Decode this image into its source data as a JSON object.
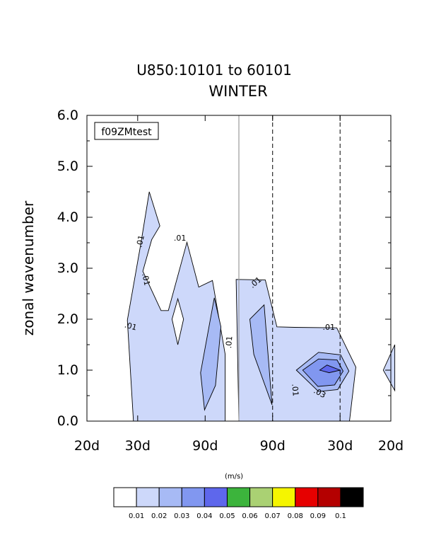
{
  "chart_data": {
    "type": "contour",
    "title": "U850:10101 to 60101",
    "subtitle": "WINTER",
    "ylabel": "zonal wavenumber",
    "ylim": [
      0.0,
      6.0
    ],
    "yticks": [
      {
        "value": 0.0,
        "label": "0.0"
      },
      {
        "value": 1.0,
        "label": "1.0"
      },
      {
        "value": 2.0,
        "label": "2.0"
      },
      {
        "value": 3.0,
        "label": "3.0"
      },
      {
        "value": 4.0,
        "label": "4.0"
      },
      {
        "value": 5.0,
        "label": "5.0"
      },
      {
        "value": 6.0,
        "label": "6.0"
      }
    ],
    "xticks": [
      {
        "value": -0.05,
        "label": "20d"
      },
      {
        "value": -0.0333,
        "label": "30d"
      },
      {
        "value": -0.0111,
        "label": "90d"
      },
      {
        "value": 0.0111,
        "label": "90d"
      },
      {
        "value": 0.0333,
        "label": "30d"
      },
      {
        "value": 0.05,
        "label": "20d"
      }
    ],
    "xlim": [
      -0.05,
      0.05
    ],
    "center_line_x": 0.0,
    "dashed_lines_x": [
      0.0111,
      0.0333
    ],
    "case_label": "f09ZMtest",
    "contour_labels": [
      {
        "text": ".01",
        "x": -0.0324,
        "y": 3.53,
        "angle": -78
      },
      {
        "text": ".01",
        "x": -0.0306,
        "y": 2.78,
        "angle": 78
      },
      {
        "text": ".01",
        "x": -0.0356,
        "y": 1.86,
        "angle": 15
      },
      {
        "text": ".01",
        "x": -0.0194,
        "y": 3.59,
        "angle": 0
      },
      {
        "text": ".01",
        "x": -0.0032,
        "y": 1.55,
        "angle": -85
      },
      {
        "text": ".01",
        "x": 0.0055,
        "y": 2.72,
        "angle": -40
      },
      {
        "text": ".01",
        "x": 0.0296,
        "y": 1.84,
        "angle": 0
      },
      {
        "text": ".01",
        "x": 0.0185,
        "y": 0.61,
        "angle": 85
      },
      {
        "text": ".03",
        "x": 0.0266,
        "y": 0.55,
        "angle": 28
      }
    ],
    "colorbar": {
      "units": "(m/s)",
      "levels": [
        "0.01",
        "0.02",
        "0.03",
        "0.04",
        "0.05",
        "0.06",
        "0.07",
        "0.08",
        "0.09",
        "0.1"
      ],
      "colors": [
        "#ffffff",
        "#cdd8fa",
        "#a7baf5",
        "#8197f0",
        "#5e67ec",
        "#3cb43c",
        "#aad173",
        "#f5f500",
        "#e60000",
        "#b40000",
        "#000000"
      ]
    },
    "regions": [
      {
        "level_index": 1,
        "points": [
          [
            -0.0347,
            0.0
          ],
          [
            -0.0367,
            1.98
          ],
          [
            -0.0322,
            3.5
          ],
          [
            -0.0295,
            4.5
          ],
          [
            -0.026,
            3.83
          ],
          [
            -0.0287,
            3.56
          ],
          [
            -0.0316,
            2.94
          ],
          [
            -0.0256,
            2.17
          ],
          [
            -0.0232,
            2.17
          ],
          [
            -0.0171,
            3.51
          ],
          [
            -0.0132,
            2.63
          ],
          [
            -0.0087,
            2.76
          ],
          [
            -0.0045,
            1.31
          ],
          [
            -0.0045,
            0.0
          ]
        ]
      },
      {
        "level_index": 1,
        "points": [
          [
            0.0,
            0.0
          ],
          [
            -0.0009,
            2.78
          ],
          [
            0.0087,
            2.77
          ],
          [
            0.0125,
            1.85
          ],
          [
            0.0183,
            1.84
          ],
          [
            0.0322,
            1.83
          ],
          [
            0.0385,
            1.06
          ],
          [
            0.0364,
            0.0
          ]
        ]
      },
      {
        "level_index": 1,
        "points": [
          [
            0.0475,
            1.0
          ],
          [
            0.0513,
            1.5
          ],
          [
            0.0513,
            0.6
          ]
        ]
      },
      {
        "level_index": 2,
        "points": [
          [
            -0.0113,
            0.22
          ],
          [
            -0.0126,
            0.95
          ],
          [
            -0.0081,
            2.42
          ],
          [
            -0.0059,
            1.85
          ],
          [
            -0.0077,
            0.7
          ]
        ]
      },
      {
        "level_index": 2,
        "points": [
          [
            0.0109,
            0.32
          ],
          [
            0.0083,
            2.28
          ],
          [
            0.0036,
            2.0
          ],
          [
            0.0049,
            1.31
          ]
        ]
      },
      {
        "level_index": 2,
        "points": [
          [
            0.0189,
            1.0
          ],
          [
            0.0262,
            1.35
          ],
          [
            0.0335,
            1.3
          ],
          [
            0.0362,
            0.98
          ],
          [
            0.0325,
            0.62
          ],
          [
            0.0262,
            0.58
          ]
        ]
      },
      {
        "level_index": 3,
        "points": [
          [
            0.021,
            1.0
          ],
          [
            0.0262,
            1.22
          ],
          [
            0.0323,
            1.2
          ],
          [
            0.0343,
            0.98
          ],
          [
            0.0315,
            0.71
          ],
          [
            0.026,
            0.68
          ]
        ]
      },
      {
        "level_index": 4,
        "points": [
          [
            0.0266,
            1.0
          ],
          [
            0.029,
            1.1
          ],
          [
            0.0333,
            1.0
          ],
          [
            0.0297,
            0.95
          ]
        ]
      },
      {
        "level_index": 0,
        "points": [
          [
            -0.022,
            2.0
          ],
          [
            -0.0201,
            2.4
          ],
          [
            -0.0182,
            2.0
          ],
          [
            -0.0201,
            1.5
          ]
        ]
      }
    ]
  }
}
